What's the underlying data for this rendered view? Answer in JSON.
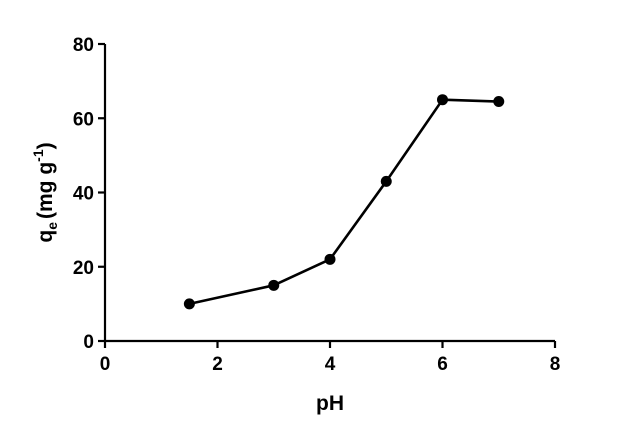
{
  "chart_data": {
    "type": "line",
    "xlabel": "pH",
    "ylabel": {
      "base": "q",
      "subscript": "e",
      "unit_prefix": "(mg g",
      "superscript": "-1",
      "unit_suffix": ")"
    },
    "xlim": [
      0,
      8
    ],
    "ylim": [
      0,
      80
    ],
    "xticks": [
      0,
      2,
      4,
      6,
      8
    ],
    "yticks": [
      0,
      20,
      40,
      60,
      80
    ],
    "xtick_labels": [
      "0",
      "2",
      "4",
      "6",
      "8"
    ],
    "ytick_labels": [
      "0",
      "20",
      "40",
      "60",
      "80"
    ],
    "grid": false,
    "legend": "none",
    "series": [
      {
        "x": [
          1.5,
          3,
          4,
          5,
          6,
          7
        ],
        "y": [
          10,
          15,
          22,
          43,
          65,
          64.5
        ],
        "color": "#000000",
        "marker": "circle"
      }
    ]
  }
}
